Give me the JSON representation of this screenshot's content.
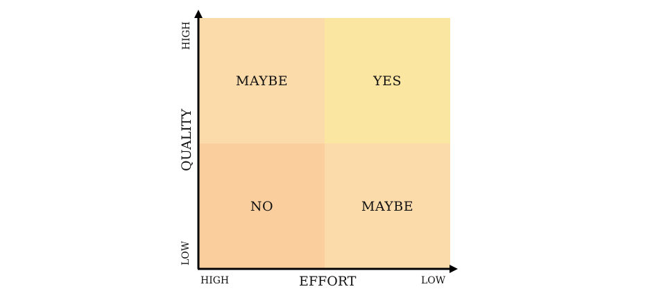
{
  "quadrants": {
    "top_left": {
      "label": "MAYBE",
      "color": "#fadba9"
    },
    "top_right": {
      "label": "YES",
      "color": "#fae5a1"
    },
    "bottom_left": {
      "label": "NO",
      "color": "#facf9d"
    },
    "bottom_right": {
      "label": "MAYBE",
      "color": "#fadba9"
    }
  },
  "x_axis": {
    "title": "EFFORT",
    "left_label": "HIGH",
    "right_label": "LOW"
  },
  "y_axis": {
    "title": "QUALITY",
    "top_label": "HIGH",
    "bottom_label": "LOW"
  },
  "axis_color": "#000000"
}
